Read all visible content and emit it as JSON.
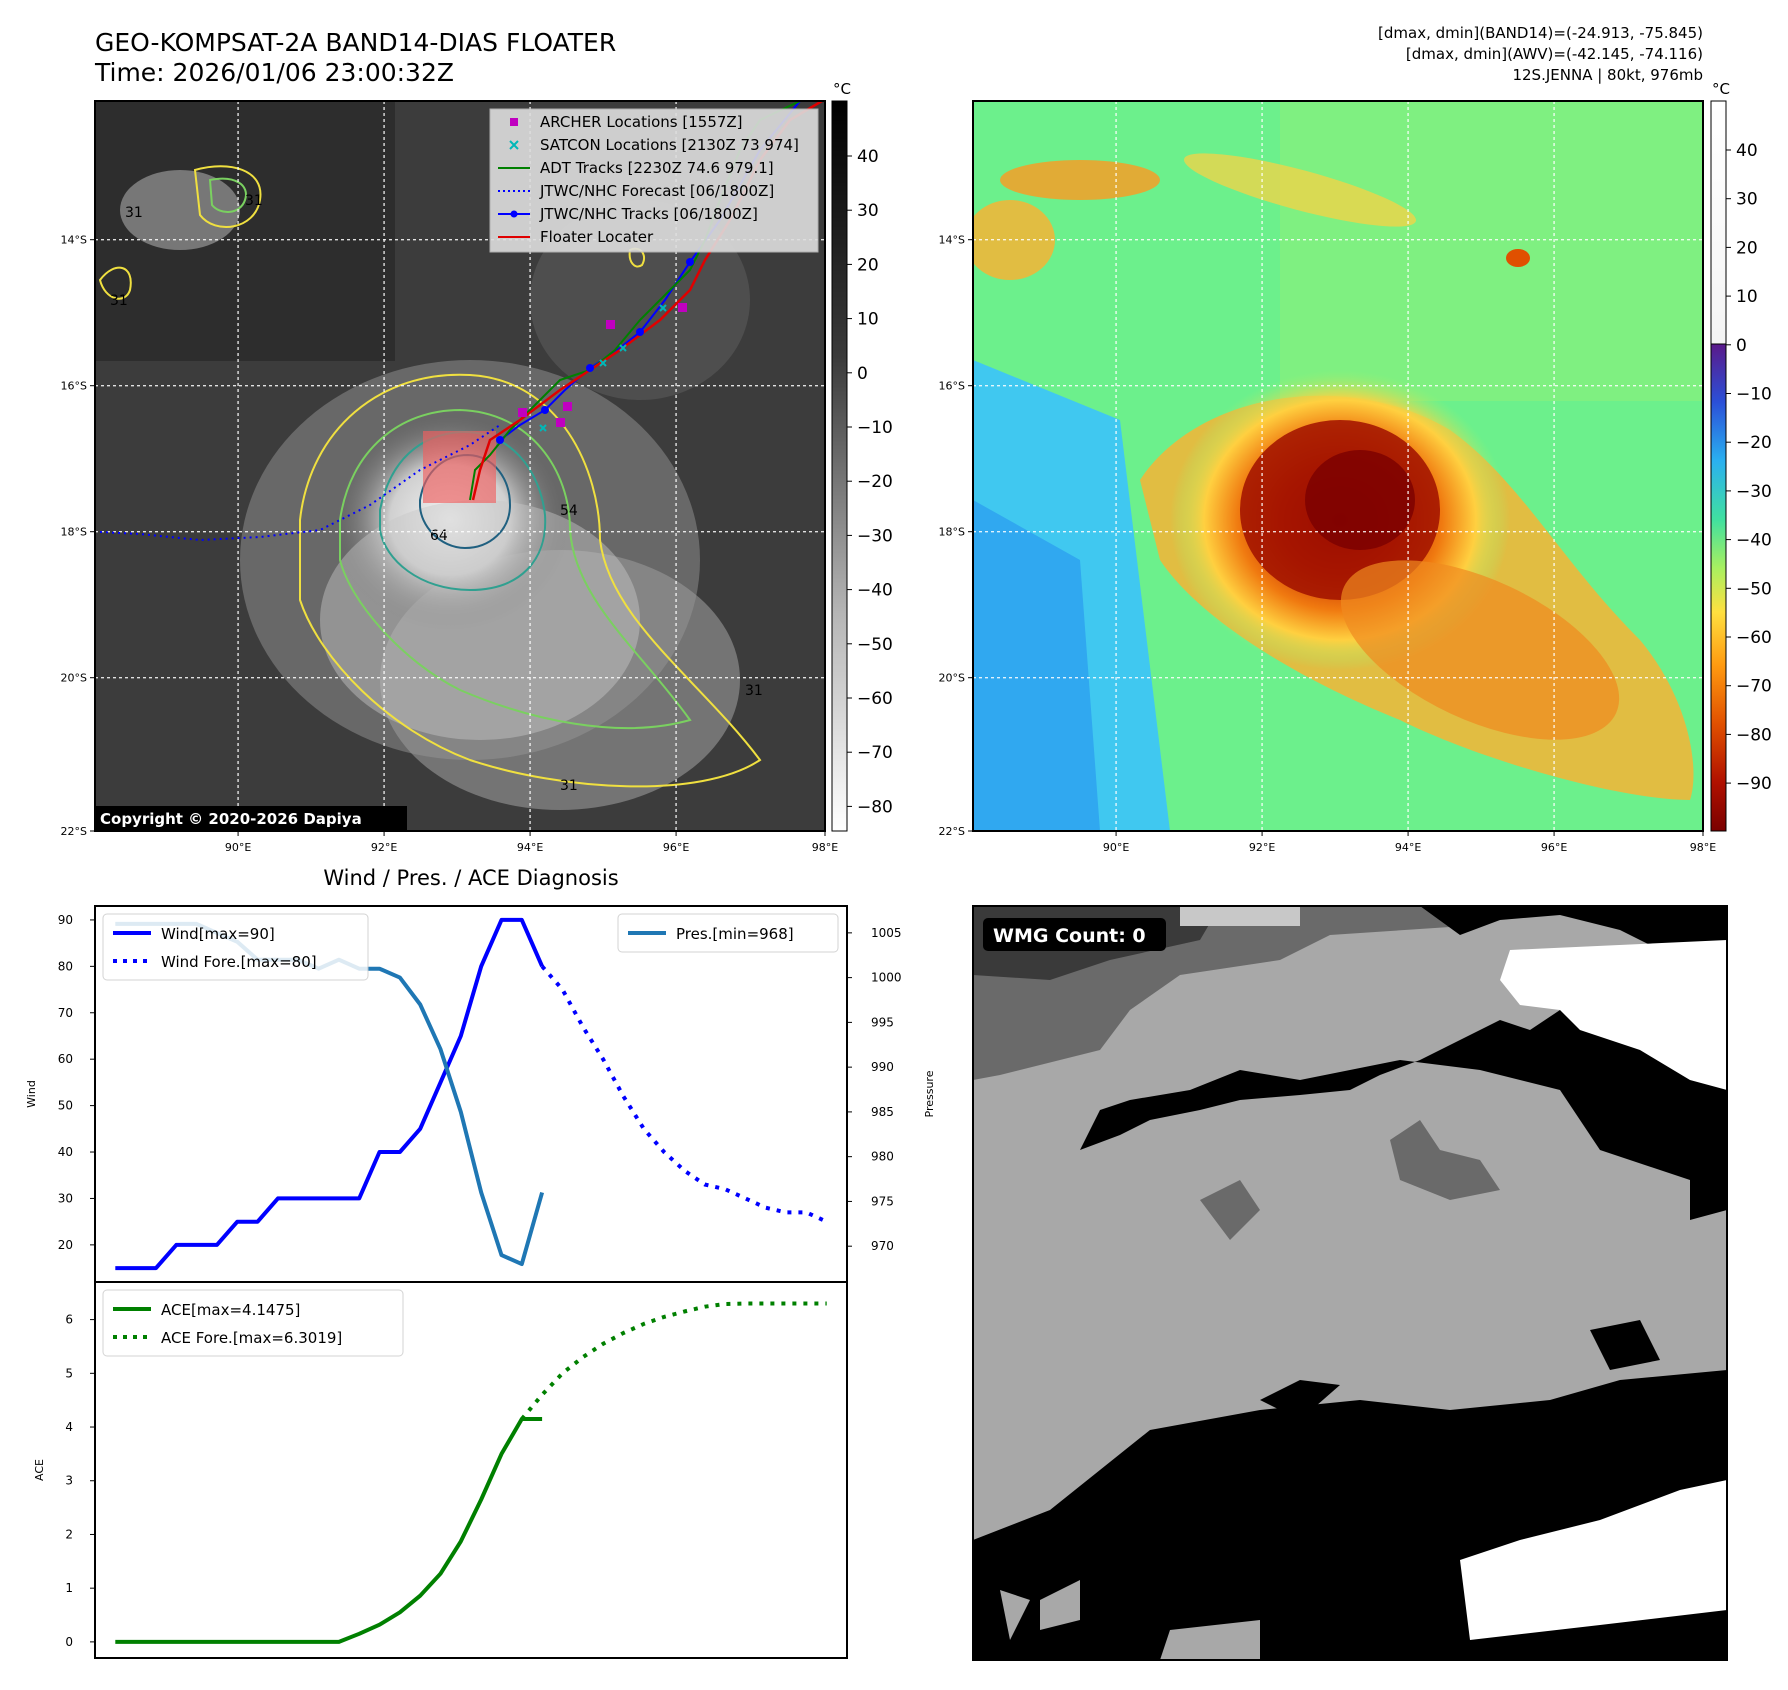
{
  "header": {
    "title": "GEO-KOMPSAT-2A BAND14-DIAS FLOATER",
    "time": "Time: 2026/01/06 23:00:32Z",
    "dmax_band14": "[dmax, dmin](BAND14)=(-24.913, -75.845)",
    "dmax_awv": "[dmax, dmin](AWV)=(-42.145, -74.116)",
    "storm": "12S.JENNA | 80kt, 976mb"
  },
  "ir_panel": {
    "lat_ticks": [
      "14°S",
      "16°S",
      "18°S",
      "20°S",
      "22°S"
    ],
    "lon_ticks": [
      "90°E",
      "92°E",
      "94°E",
      "96°E",
      "98°E"
    ],
    "copyright": "Copyright © 2020-2026 Dapiya",
    "contour_labels": [
      "31",
      "31",
      "31",
      "54",
      "64",
      "31",
      "31",
      "31"
    ],
    "colorbar_unit": "°C",
    "colorbar_ticks": [
      "40",
      "30",
      "20",
      "10",
      "0",
      "−10",
      "−20",
      "−30",
      "−40",
      "−50",
      "−60",
      "−70",
      "−80"
    ],
    "legend": [
      {
        "label": "ARCHER Locations [1557Z]",
        "color": "#c000c0",
        "kind": "square"
      },
      {
        "label": "SATCON Locations [2130Z 73 974]",
        "color": "#00b8b8",
        "kind": "x"
      },
      {
        "label": "ADT Tracks [2230Z 74.6 979.1]",
        "color": "#008000",
        "kind": "line"
      },
      {
        "label": "JTWC/NHC Forecast [06/1800Z]",
        "color": "#0000ff",
        "kind": "dotted"
      },
      {
        "label": "JTWC/NHC Tracks [06/1800Z]",
        "color": "#0000ff",
        "kind": "line-dot"
      },
      {
        "label": "Floater Locater",
        "color": "#e00000",
        "kind": "line"
      }
    ]
  },
  "awv_panel": {
    "lat_ticks": [
      "14°S",
      "16°S",
      "18°S",
      "20°S",
      "22°S"
    ],
    "lon_ticks": [
      "90°E",
      "92°E",
      "94°E",
      "96°E",
      "98°E"
    ],
    "colorbar_unit": "°C",
    "colorbar_ticks": [
      "40",
      "30",
      "20",
      "10",
      "0",
      "−10",
      "−20",
      "−30",
      "−40",
      "−50",
      "−60",
      "−70",
      "−80",
      "−90"
    ]
  },
  "wmg_panel": {
    "label": "WMG Count: 0"
  },
  "chart_data": [
    {
      "type": "line",
      "title": "Wind / Pres. / ACE Diagnosis",
      "ylabel": "Wind",
      "y2label": "Pressure",
      "ylim": [
        12,
        93
      ],
      "y2lim": [
        966,
        1008
      ],
      "yticks": [
        20,
        30,
        40,
        50,
        60,
        70,
        80,
        90
      ],
      "y2ticks": [
        970,
        975,
        980,
        985,
        990,
        995,
        1000,
        1005
      ],
      "series": [
        {
          "name": "Wind[max=90]",
          "color": "#0000ff",
          "style": "solid",
          "x": [
            0,
            1,
            2,
            3,
            4,
            5,
            6,
            7,
            8,
            9,
            10,
            11,
            12,
            13,
            14,
            15,
            16,
            17,
            18,
            19,
            20,
            21
          ],
          "values": [
            15,
            15,
            15,
            20,
            20,
            20,
            25,
            25,
            30,
            30,
            30,
            30,
            30,
            40,
            40,
            45,
            55,
            65,
            80,
            90,
            90,
            80
          ]
        },
        {
          "name": "Wind Fore.[max=80]",
          "color": "#0000ff",
          "style": "dotted",
          "x": [
            21,
            22,
            23,
            24,
            25,
            26,
            27,
            28,
            29,
            30,
            31,
            32,
            33,
            34,
            35
          ],
          "values": [
            80,
            75,
            67,
            60,
            52,
            45,
            40,
            36,
            33,
            32,
            30,
            28,
            27,
            27,
            25
          ]
        },
        {
          "name": "Pres.[min=968]",
          "color": "#1f77b4",
          "style": "solid",
          "x": [
            0,
            1,
            2,
            3,
            4,
            5,
            6,
            7,
            8,
            9,
            10,
            11,
            12,
            13,
            14,
            15,
            16,
            17,
            18,
            19,
            20,
            21
          ],
          "values": [
            1006,
            1006,
            1006,
            1006,
            1006,
            1005,
            1004,
            1002,
            1002,
            1002,
            1001,
            1002,
            1001,
            1001,
            1000,
            997,
            992,
            985,
            976,
            969,
            968,
            976
          ]
        }
      ]
    },
    {
      "type": "line",
      "ylabel": "ACE",
      "ylim": [
        -0.3,
        6.7
      ],
      "yticks": [
        0,
        1,
        2,
        3,
        4,
        5,
        6
      ],
      "series": [
        {
          "name": "ACE[max=4.1475]",
          "color": "#008000",
          "style": "solid",
          "x": [
            0,
            1,
            2,
            3,
            4,
            5,
            6,
            7,
            8,
            9,
            10,
            11,
            12,
            13,
            14,
            15,
            16,
            17,
            18,
            19,
            20,
            21
          ],
          "values": [
            0,
            0,
            0,
            0,
            0,
            0,
            0,
            0,
            0,
            0,
            0,
            0,
            0.15,
            0.32,
            0.55,
            0.86,
            1.27,
            1.87,
            2.65,
            3.5,
            4.15,
            4.15
          ]
        },
        {
          "name": "ACE Fore.[max=6.3019]",
          "color": "#008000",
          "style": "dotted",
          "x": [
            20,
            21,
            22,
            23,
            24,
            25,
            26,
            27,
            28,
            29,
            30,
            31,
            32,
            33,
            34,
            35
          ],
          "values": [
            4.15,
            4.6,
            5.0,
            5.3,
            5.55,
            5.75,
            5.92,
            6.05,
            6.15,
            6.24,
            6.29,
            6.3,
            6.3,
            6.3,
            6.3,
            6.3
          ]
        }
      ]
    }
  ]
}
